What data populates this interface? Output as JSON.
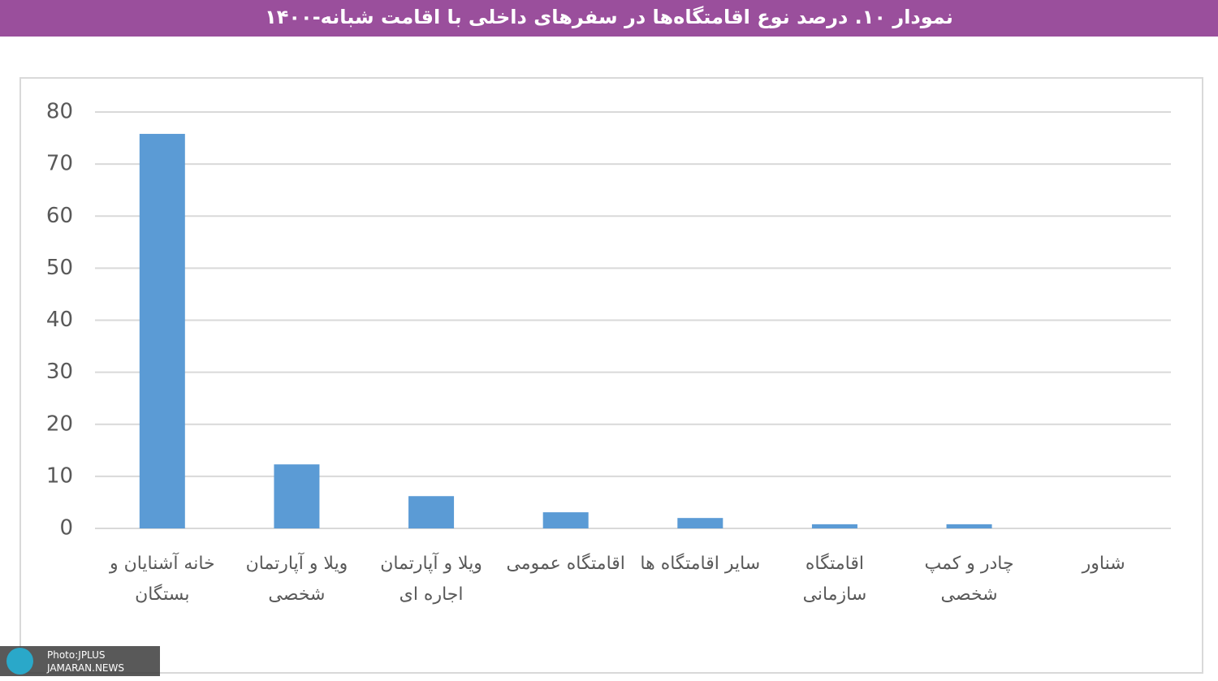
{
  "chart_data": {
    "type": "bar",
    "title": "نمودار ۱۰. درصد نوع اقامتگاه‌ها در سفرهای داخلی با اقامت شبانه-۱۴۰۰",
    "categories": [
      "خانه آشنایان و بستگان",
      "ویلا و آپارتمان شخصی",
      "ویلا و آپارتمان اجاره ای",
      "اقامتگاه عمومی",
      "سایر اقامتگاه ها",
      "اقامتگاه سازمانی",
      "چادر و کمپ شخصی",
      "شناور"
    ],
    "values": [
      75.8,
      12.3,
      6.2,
      3.1,
      2.0,
      0.8,
      0.8,
      0
    ],
    "color": "#5b9bd5",
    "ylim": [
      0,
      80
    ],
    "yticks": [
      0,
      10,
      20,
      30,
      40,
      50,
      60,
      70,
      80
    ],
    "grid": true
  },
  "watermark": {
    "line1": "Photo:JPLUS",
    "line2": "JAMARAN.NEWS"
  }
}
